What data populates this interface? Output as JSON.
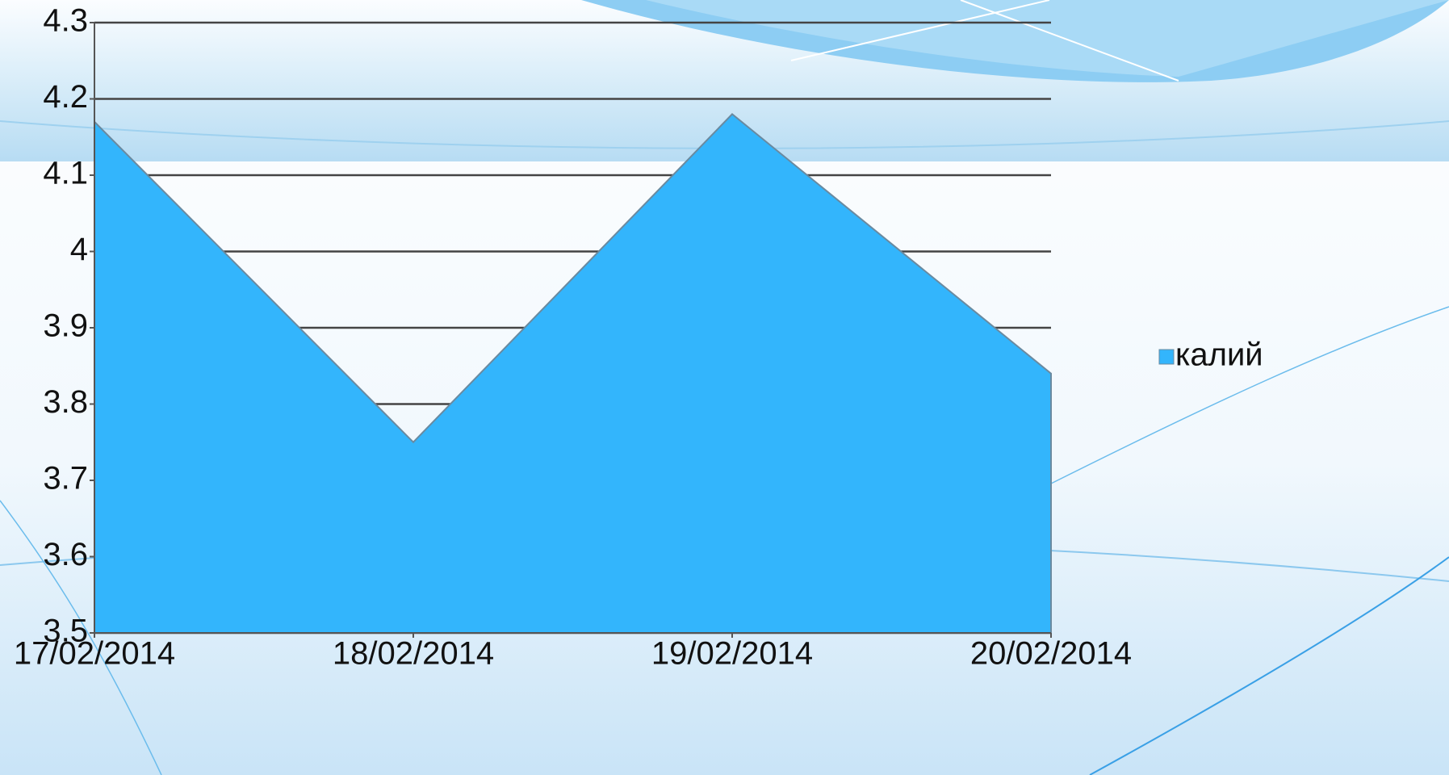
{
  "chart_data": {
    "type": "area",
    "categories": [
      "17/02/2014",
      "18/02/2014",
      "19/02/2014",
      "20/02/2014"
    ],
    "series": [
      {
        "name": "калий",
        "color": "#33b5fc",
        "values": [
          4.17,
          3.75,
          4.18,
          3.84
        ]
      }
    ],
    "ylim": [
      3.5,
      4.3
    ],
    "yticks": [
      3.5,
      3.6,
      3.7,
      3.8,
      3.9,
      4,
      4.1,
      4.2,
      4.3
    ],
    "grid": true,
    "legend": "right"
  }
}
